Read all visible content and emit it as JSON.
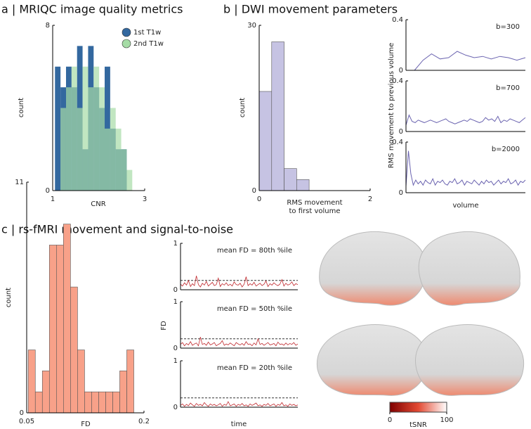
{
  "chart_data": [
    {
      "type": "histogram",
      "title": "a | MRIQC image quality metrics",
      "xlabel": "CNR",
      "ylabel": "count",
      "bins": [
        1.05,
        1.17,
        1.29,
        1.41,
        1.53,
        1.65,
        1.77,
        1.89,
        2.01,
        2.13,
        2.25,
        2.37,
        2.49,
        2.61,
        2.73
      ],
      "series": [
        {
          "name": "1st T1w",
          "color": "#33689f",
          "values": [
            6,
            5,
            6,
            5,
            7,
            2,
            7,
            5,
            4,
            6,
            3,
            2,
            2,
            0
          ]
        },
        {
          "name": "2nd T1w",
          "color": "#a6dca6",
          "values": [
            0,
            4,
            5,
            6,
            4,
            6,
            5,
            6,
            5,
            3,
            4,
            3,
            2,
            1
          ]
        }
      ],
      "xlim": [
        1,
        3
      ],
      "xticks": [
        1,
        3
      ],
      "ylim": [
        0,
        8
      ],
      "yticks": [
        0,
        8
      ],
      "legend": "upper right"
    },
    {
      "type": "histogram",
      "title": "b | DWI movement parameters",
      "xlabel": [
        "RMS movement",
        "to first volume"
      ],
      "ylabel": "count",
      "bins": [
        0,
        0.225,
        0.45,
        0.675,
        0.9
      ],
      "values": [
        18,
        27,
        4,
        2
      ],
      "color": "#c6c3e3",
      "xlim": [
        0,
        2
      ],
      "xticks": [
        0,
        2
      ],
      "ylim": [
        0,
        30
      ],
      "yticks": [
        0,
        30
      ]
    },
    {
      "type": "line",
      "annotation": "b=300",
      "color": "#6b64b0",
      "values": [
        null,
        0,
        0.08,
        0.13,
        0.09,
        0.1,
        0.15,
        0.12,
        0.1,
        0.11,
        0.09,
        0.11,
        0.1,
        0.08,
        0.1
      ],
      "ylim": [
        0,
        0.4
      ],
      "yticks": [
        0,
        0.4
      ]
    },
    {
      "type": "line",
      "annotation": "b=700",
      "color": "#6b64b0",
      "ylabel": "RMS movement to previous volume",
      "values": [
        0.05,
        0.13,
        0.08,
        0.07,
        0.09,
        0.08,
        0.07,
        0.08,
        0.09,
        0.08,
        0.07,
        0.08,
        0.09,
        0.1,
        0.08,
        0.07,
        0.06,
        0.07,
        0.08,
        0.09,
        0.08,
        0.1,
        0.09,
        0.08,
        0.07,
        0.08,
        0.11,
        0.09,
        0.1,
        0.08,
        0.12,
        0.07,
        0.09,
        0.08,
        0.1,
        0.09,
        0.08,
        0.07,
        0.09,
        0.11
      ],
      "ylim": [
        0,
        0.4
      ],
      "yticks": [
        0,
        0.4
      ]
    },
    {
      "type": "line",
      "annotation": "b=2000",
      "color": "#6b64b0",
      "xlabel": "volume",
      "values": [
        0.05,
        0.33,
        0.15,
        0.06,
        0.1,
        0.07,
        0.09,
        0.06,
        0.1,
        0.08,
        0.07,
        0.11,
        0.06,
        0.09,
        0.08,
        0.1,
        0.07,
        0.06,
        0.09,
        0.08,
        0.11,
        0.07,
        0.08,
        0.1,
        0.06,
        0.09,
        0.08,
        0.07,
        0.1,
        0.08,
        0.06,
        0.09,
        0.07,
        0.1,
        0.08,
        0.09,
        0.06,
        0.08,
        0.1,
        0.07,
        0.09,
        0.08,
        0.11,
        0.07,
        0.08,
        0.1,
        0.06,
        0.09,
        0.08,
        0.1
      ],
      "ylim": [
        0,
        0.4
      ],
      "yticks": [
        0,
        0.4
      ]
    },
    {
      "type": "histogram",
      "title": "c | rs-fMRI movement and signal-to-noise",
      "xlabel": "FD",
      "ylabel": "count",
      "bins": [
        0.052,
        0.061,
        0.07,
        0.079,
        0.088,
        0.097,
        0.106,
        0.115,
        0.124,
        0.133,
        0.142,
        0.151,
        0.16,
        0.169,
        0.178,
        0.187
      ],
      "values": [
        3,
        1,
        2,
        8,
        8,
        9,
        6,
        3,
        1,
        1,
        1,
        1,
        1,
        2,
        3
      ],
      "color": "#f8a189",
      "xlim": [
        0.05,
        0.2
      ],
      "xticks": [
        0.05,
        0.2
      ],
      "ylim": [
        0,
        11
      ],
      "yticks": [
        0,
        11
      ]
    },
    {
      "type": "line",
      "annotation": "mean FD = 80th %ile",
      "color": "#c0282d",
      "hline": 0.2,
      "values": [
        0.12,
        0.08,
        0.15,
        0.1,
        0.2,
        0.07,
        0.13,
        0.09,
        0.3,
        0.11,
        0.06,
        0.14,
        0.1,
        0.18,
        0.08,
        0.12,
        0.16,
        0.09,
        0.11,
        0.25,
        0.07,
        0.13,
        0.1,
        0.15,
        0.09,
        0.12,
        0.08,
        0.17,
        0.11,
        0.1,
        0.14,
        0.06,
        0.12,
        0.28,
        0.09,
        0.13,
        0.1,
        0.16,
        0.08,
        0.11,
        0.14,
        0.09,
        0.12,
        0.19,
        0.07,
        0.13,
        0.1,
        0.15,
        0.11,
        0.09,
        0.12,
        0.22,
        0.08,
        0.14,
        0.1,
        0.12,
        0.17,
        0.09,
        0.13,
        0.11
      ],
      "ylim": [
        0,
        1
      ],
      "yticks": [
        0,
        1
      ]
    },
    {
      "type": "line",
      "annotation": "mean FD = 50th %ile",
      "color": "#c0282d",
      "hline": 0.2,
      "ylabel": "FD",
      "values": [
        0.08,
        0.12,
        0.05,
        0.1,
        0.07,
        0.14,
        0.06,
        0.09,
        0.11,
        0.05,
        0.24,
        0.08,
        0.1,
        0.06,
        0.13,
        0.07,
        0.09,
        0.12,
        0.05,
        0.08,
        0.1,
        0.16,
        0.06,
        0.09,
        0.07,
        0.11,
        0.08,
        0.05,
        0.12,
        0.09,
        0.07,
        0.1,
        0.06,
        0.14,
        0.08,
        0.09,
        0.05,
        0.11,
        0.07,
        0.2,
        0.08,
        0.1,
        0.06,
        0.09,
        0.12,
        0.07,
        0.08,
        0.1,
        0.05,
        0.13,
        0.08,
        0.09,
        0.06,
        0.11,
        0.07,
        0.1,
        0.08,
        0.12,
        0.06,
        0.09
      ],
      "ylim": [
        0,
        1
      ],
      "yticks": [
        0,
        1
      ]
    },
    {
      "type": "line",
      "annotation": "mean FD = 20th %ile",
      "color": "#c0282d",
      "hline": 0.2,
      "xlabel": "time",
      "values": [
        0.04,
        0.07,
        0.02,
        0.06,
        0.03,
        0.09,
        0.05,
        0.02,
        0.08,
        0.04,
        0.06,
        0.03,
        0.1,
        0.05,
        0.02,
        0.07,
        0.04,
        0.06,
        0.03,
        0.05,
        0.08,
        0.02,
        0.06,
        0.04,
        0.12,
        0.03,
        0.05,
        0.07,
        0.02,
        0.06,
        0.04,
        0.08,
        0.03,
        0.05,
        0.02,
        0.07,
        0.04,
        0.06,
        0.09,
        0.03,
        0.05,
        0.02,
        0.06,
        0.04,
        0.08,
        0.03,
        0.05,
        0.07,
        0.02,
        0.06,
        0.04,
        0.1,
        0.03,
        0.05,
        0.02,
        0.07,
        0.04,
        0.06,
        0.03,
        0.05
      ],
      "ylim": [
        0,
        1
      ],
      "yticks": [
        0,
        1
      ]
    },
    {
      "type": "colorbar",
      "xlabel": "tSNR",
      "xlim": [
        0,
        100
      ],
      "xticks": [
        0,
        100
      ],
      "colors": [
        "#7f0000",
        "#e34a33",
        "#ffffff"
      ]
    }
  ]
}
